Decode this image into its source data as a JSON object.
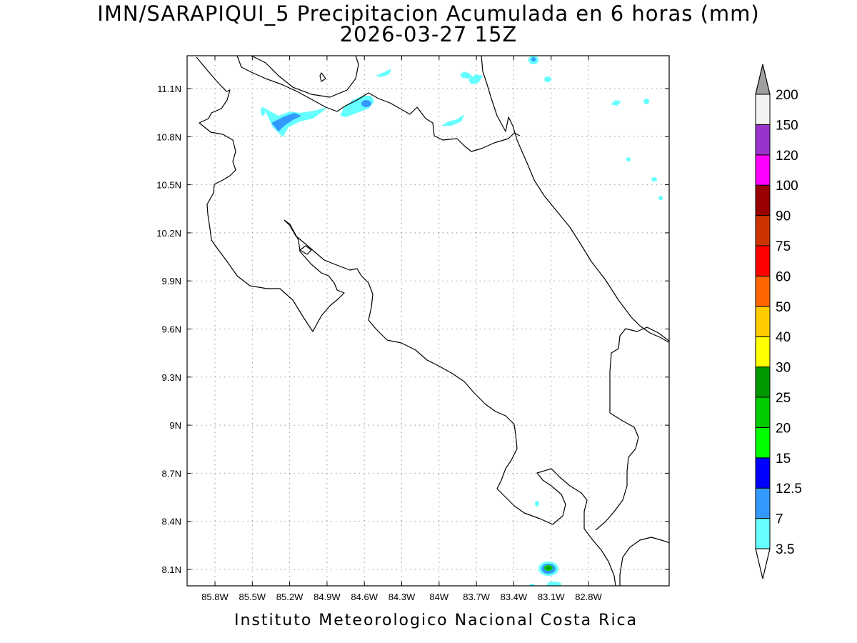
{
  "title": {
    "line1": "IMN/SARAPIQUI_5 Precipitacion Acumulada en 6 horas (mm)",
    "line2": "2026-03-27 15Z"
  },
  "footer": "Instituto Meteorologico Nacional Costa Rica",
  "map": {
    "lat_ticks": [
      "11.1N",
      "10.8N",
      "10.5N",
      "10.2N",
      "9.9N",
      "9.6N",
      "9.3N",
      "9N",
      "8.7N",
      "8.4N",
      "8.1N"
    ],
    "lon_ticks": [
      "85.8W",
      "85.5W",
      "85.2W",
      "84.9W",
      "84.6W",
      "84.3W",
      "84W",
      "83.7W",
      "83.4W",
      "83.1W",
      "82.8W"
    ]
  },
  "colorbar": {
    "labels": [
      "3.5",
      "7",
      "12.5",
      "15",
      "20",
      "25",
      "30",
      "40",
      "50",
      "60",
      "75",
      "90",
      "100",
      "120",
      "150",
      "200"
    ],
    "colors": [
      "#66ffff",
      "#3399ff",
      "#0000ff",
      "#00ff00",
      "#00cc00",
      "#009900",
      "#ffff00",
      "#ffcc00",
      "#ff6600",
      "#ff0000",
      "#cc3300",
      "#990000",
      "#ff00ff",
      "#9933cc",
      "#f2f2f2"
    ],
    "top_arrow_color": "#a0a0a0",
    "bottom_arrow_color": "#ffffff"
  }
}
